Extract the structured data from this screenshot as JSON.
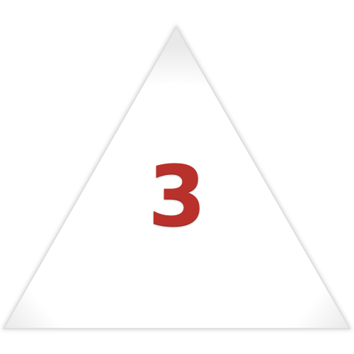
{
  "badge": {
    "number": "3",
    "number_color": "#b8312b",
    "shape": "triangle",
    "edge_color": "#cfcfcf"
  }
}
